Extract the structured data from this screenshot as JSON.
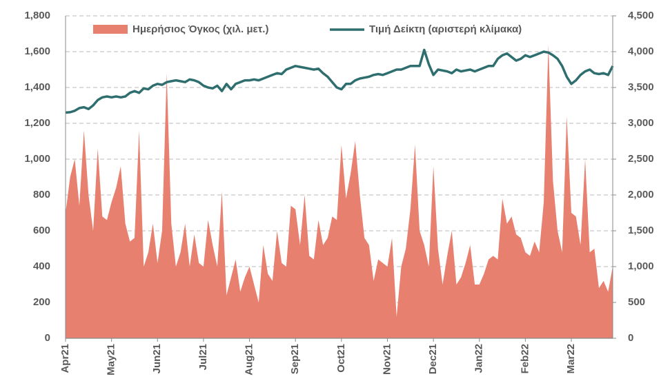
{
  "chart_data": {
    "type": "line",
    "categories": [
      "Apr21",
      null,
      null,
      null,
      null,
      null,
      null,
      null,
      null,
      null,
      "May21",
      null,
      null,
      null,
      null,
      null,
      null,
      null,
      null,
      null,
      "Jun21",
      null,
      null,
      null,
      null,
      null,
      null,
      null,
      null,
      null,
      "Jul21",
      null,
      null,
      null,
      null,
      null,
      null,
      null,
      null,
      null,
      "Aug21",
      null,
      null,
      null,
      null,
      null,
      null,
      null,
      null,
      null,
      "Sep21",
      null,
      null,
      null,
      null,
      null,
      null,
      null,
      null,
      null,
      "Oct21",
      null,
      null,
      null,
      null,
      null,
      null,
      null,
      null,
      null,
      "Nov21",
      null,
      null,
      null,
      null,
      null,
      null,
      null,
      null,
      null,
      "Dec21",
      null,
      null,
      null,
      null,
      null,
      null,
      null,
      null,
      null,
      "Jan22",
      null,
      null,
      null,
      null,
      null,
      null,
      null,
      null,
      null,
      "Feb22",
      null,
      null,
      null,
      null,
      null,
      null,
      null,
      null,
      null,
      "Mar22",
      null,
      null,
      null,
      null,
      null,
      null,
      null,
      null,
      null
    ],
    "series": [
      {
        "name": "Ημερήσιος Όγκος (χιλ. μετ.)",
        "type": "area",
        "axis": "y2",
        "color": "#e8806f",
        "values": [
          1750,
          2250,
          2500,
          1850,
          2900,
          2000,
          1500,
          2650,
          1700,
          1650,
          1900,
          2100,
          2400,
          1600,
          1350,
          1400,
          2900,
          1000,
          1200,
          1600,
          1050,
          1500,
          3700,
          1600,
          1000,
          1200,
          1600,
          1000,
          1450,
          1050,
          1000,
          1650,
          1300,
          1000,
          2050,
          600,
          850,
          1100,
          650,
          850,
          1000,
          750,
          500,
          1300,
          900,
          800,
          1500,
          1050,
          1000,
          1850,
          1800,
          1300,
          2000,
          1150,
          1100,
          1650,
          1300,
          1400,
          1700,
          1650,
          2700,
          1950,
          2300,
          2750,
          2000,
          1400,
          1300,
          800,
          1100,
          1050,
          1000,
          1400,
          300,
          1000,
          1250,
          1800,
          2700,
          1500,
          1300,
          1000,
          2400,
          1250,
          750,
          1150,
          1500,
          750,
          850,
          1050,
          1300,
          750,
          750,
          900,
          1100,
          1150,
          1100,
          1950,
          1600,
          1700,
          1450,
          1400,
          1200,
          1150,
          1350,
          1200,
          1900,
          4100,
          2200,
          1500,
          1200,
          3100,
          1750,
          1700,
          1300,
          2500,
          1200,
          1250,
          700,
          800,
          650,
          1000
        ]
      },
      {
        "name": "Τιμή Δείκτη (αριστερή κλίμακα)",
        "type": "line",
        "color": "#2e6e6e",
        "values": [
          1260,
          1262,
          1270,
          1285,
          1290,
          1280,
          1300,
          1330,
          1345,
          1350,
          1345,
          1350,
          1345,
          1350,
          1370,
          1380,
          1370,
          1395,
          1390,
          1410,
          1420,
          1415,
          1430,
          1435,
          1440,
          1435,
          1430,
          1445,
          1440,
          1430,
          1410,
          1400,
          1395,
          1410,
          1380,
          1420,
          1390,
          1420,
          1430,
          1440,
          1440,
          1445,
          1440,
          1450,
          1460,
          1470,
          1480,
          1475,
          1500,
          1510,
          1520,
          1515,
          1510,
          1505,
          1500,
          1505,
          1480,
          1460,
          1430,
          1400,
          1390,
          1420,
          1420,
          1440,
          1450,
          1455,
          1460,
          1470,
          1475,
          1470,
          1480,
          1490,
          1500,
          1500,
          1510,
          1520,
          1520,
          1520,
          1610,
          1530,
          1470,
          1500,
          1495,
          1490,
          1480,
          1500,
          1490,
          1495,
          1500,
          1490,
          1500,
          1510,
          1520,
          1520,
          1560,
          1580,
          1590,
          1570,
          1550,
          1560,
          1580,
          1570,
          1580,
          1590,
          1600,
          1595,
          1580,
          1560,
          1520,
          1460,
          1420,
          1440,
          1470,
          1490,
          1500,
          1480,
          1475,
          1480,
          1470,
          1520
        ]
      }
    ],
    "ylim": [
      0,
      1800
    ],
    "yticks": [
      0,
      200,
      400,
      600,
      800,
      {
        "value": 1000,
        "label": "1,000"
      },
      {
        "value": 1200,
        "label": "1,200"
      },
      {
        "value": 1400,
        "label": "1,400"
      },
      {
        "value": 1600,
        "label": "1,600"
      },
      {
        "value": 1800,
        "label": "1,800"
      }
    ],
    "y2lim": [
      0,
      4500
    ],
    "y2ticks": [
      0,
      500,
      {
        "value": 1000,
        "label": "1,000"
      },
      {
        "value": 1500,
        "label": "1,500"
      },
      {
        "value": 2000,
        "label": "2,000"
      },
      {
        "value": 2500,
        "label": "2,500"
      },
      {
        "value": 3000,
        "label": "3,000"
      },
      {
        "value": 3500,
        "label": "3,500"
      },
      {
        "value": 4000,
        "label": "4,000"
      },
      {
        "value": 4500,
        "label": "4,500"
      }
    ],
    "grid": true
  }
}
